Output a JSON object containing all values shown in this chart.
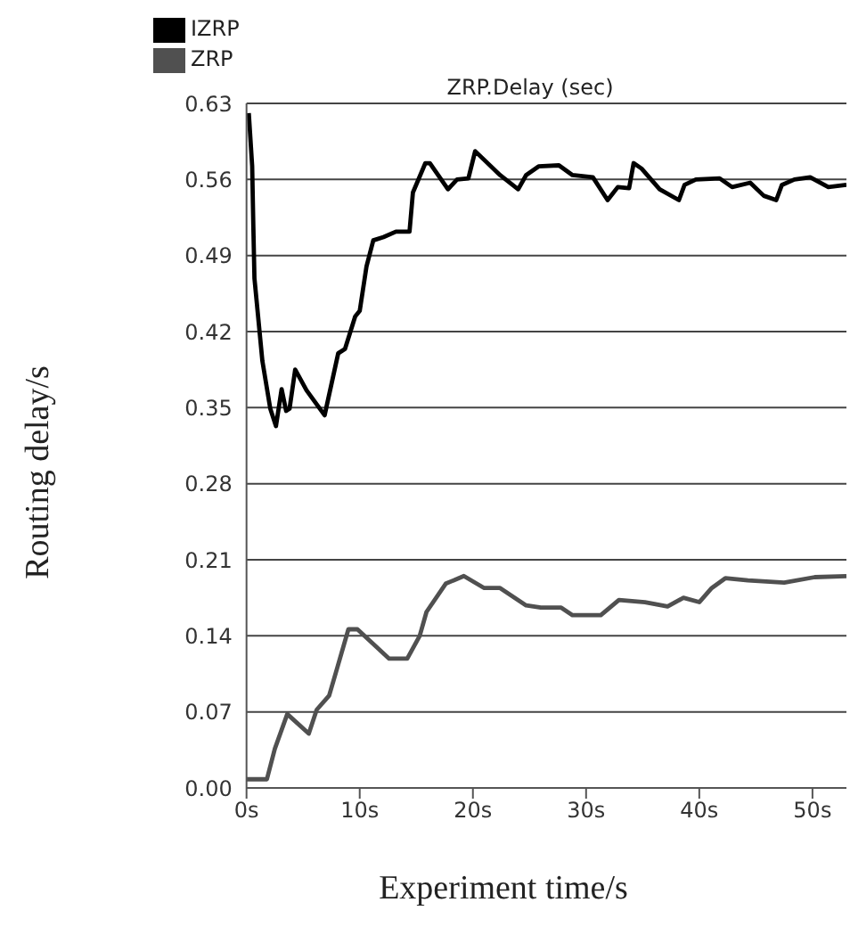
{
  "chart_data": {
    "type": "line",
    "title": "ZRP.Delay (sec)",
    "xlabel": "Experiment time/s",
    "ylabel": "Routing delay/s",
    "xlim": [
      0,
      53
    ],
    "xticks": [
      {
        "value": 0,
        "label": "0s"
      },
      {
        "value": 10,
        "label": "10s"
      },
      {
        "value": 20,
        "label": "20s"
      },
      {
        "value": 30,
        "label": "30s"
      },
      {
        "value": 40,
        "label": "40s"
      },
      {
        "value": 50,
        "label": "50s"
      }
    ],
    "ylim": [
      0,
      0.63
    ],
    "yticks": [
      {
        "value": 0,
        "label": "0.00"
      },
      {
        "value": 0.07,
        "label": "0.07"
      },
      {
        "value": 0.14,
        "label": "0.14"
      },
      {
        "value": 0.21,
        "label": "0.21"
      },
      {
        "value": 0.28,
        "label": "0.28"
      },
      {
        "value": 0.35,
        "label": "0.35"
      },
      {
        "value": 0.42,
        "label": "0.42"
      },
      {
        "value": 0.49,
        "label": "0.49"
      },
      {
        "value": 0.56,
        "label": "0.56"
      },
      {
        "value": 0.63,
        "label": "0.63"
      }
    ],
    "grid": "y",
    "legend": "top left",
    "marker": "none",
    "line_style": "solid",
    "series": [
      {
        "name": "IZRP",
        "color": "#000000",
        "x": [
          0.2,
          0.5,
          0.6,
          0.7,
          1.4,
          2.1,
          2.6,
          3.1,
          3.5,
          3.8,
          4.3,
          5.3,
          6.9,
          8.1,
          8.7,
          9.6,
          10,
          10.6,
          11.2,
          12.1,
          13.2,
          14.4,
          14.7,
          15.8,
          16.2,
          17.8,
          18.6,
          19.6,
          20.2,
          22.4,
          24,
          24.7,
          25.8,
          27.6,
          28.8,
          30.6,
          31.9,
          32.8,
          33.8,
          34.2,
          34.9,
          36.5,
          38.2,
          38.7,
          39.7,
          41.8,
          42.9,
          44.5,
          45.7,
          46.8,
          47.3,
          48.4,
          49.8,
          51.4,
          53
        ],
        "values": [
          0.621,
          0.572,
          0.518,
          0.469,
          0.393,
          0.349,
          0.333,
          0.367,
          0.347,
          0.349,
          0.385,
          0.366,
          0.343,
          0.4,
          0.404,
          0.434,
          0.439,
          0.48,
          0.504,
          0.507,
          0.512,
          0.512,
          0.548,
          0.575,
          0.575,
          0.551,
          0.56,
          0.561,
          0.586,
          0.564,
          0.551,
          0.564,
          0.572,
          0.573,
          0.564,
          0.562,
          0.541,
          0.553,
          0.552,
          0.575,
          0.57,
          0.551,
          0.541,
          0.555,
          0.56,
          0.561,
          0.553,
          0.557,
          0.545,
          0.541,
          0.555,
          0.56,
          0.562,
          0.553,
          0.555
        ]
      },
      {
        "name": "ZRP",
        "color": "#505050",
        "x": [
          0,
          1.8,
          2.5,
          3.6,
          5.5,
          6.2,
          7.3,
          8,
          9,
          9.8,
          12.6,
          14.2,
          15.3,
          15.9,
          17.6,
          19.2,
          21,
          22.4,
          24.7,
          26,
          27.8,
          28.8,
          31.3,
          32.9,
          35.2,
          37.2,
          38.6,
          40,
          41.1,
          42.3,
          44.3,
          47.5,
          50.2,
          53
        ],
        "values": [
          0.008,
          0.008,
          0.036,
          0.068,
          0.05,
          0.072,
          0.085,
          0.11,
          0.146,
          0.146,
          0.119,
          0.119,
          0.14,
          0.162,
          0.188,
          0.195,
          0.184,
          0.184,
          0.168,
          0.166,
          0.166,
          0.159,
          0.159,
          0.173,
          0.171,
          0.167,
          0.175,
          0.171,
          0.184,
          0.193,
          0.191,
          0.189,
          0.194,
          0.195
        ]
      }
    ]
  }
}
